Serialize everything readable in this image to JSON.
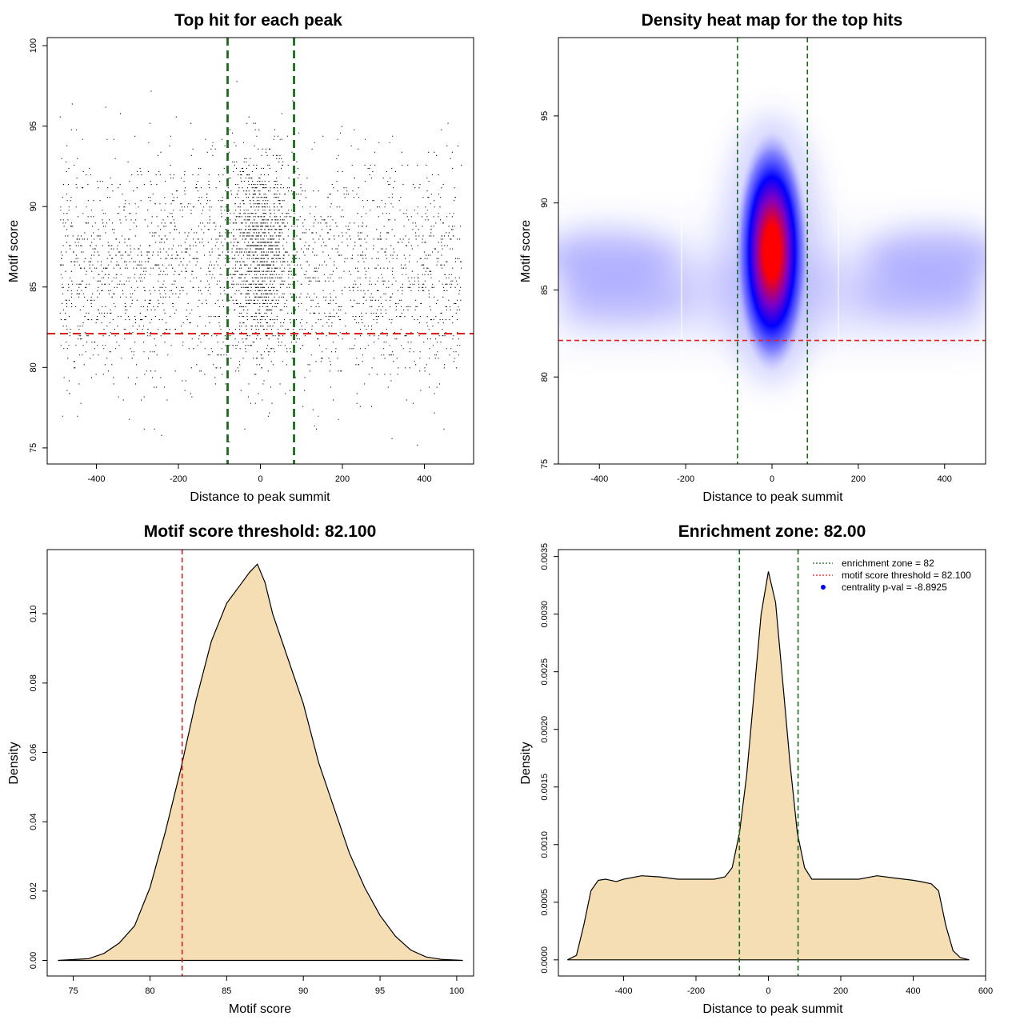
{
  "chart_data": [
    {
      "id": "scatter",
      "type": "scatter",
      "title": "Top hit for each peak",
      "xlabel": "Distance to peak summit",
      "ylabel": "Motif score",
      "xlim": [
        -520,
        520
      ],
      "ylim": [
        74,
        100.5
      ],
      "xticks": [
        -400,
        -200,
        0,
        200,
        400
      ],
      "yticks": [
        75,
        80,
        85,
        90,
        95,
        100
      ],
      "vlines": [
        -80,
        82
      ],
      "hline": 82.1,
      "point_color": "#000000",
      "vline_color": "#1a6b1a",
      "hline_color": "#e02020"
    },
    {
      "id": "heatmap",
      "type": "heatmap",
      "title": "Density heat map for the top hits",
      "xlabel": "Distance to peak summit",
      "ylabel": "Motif score",
      "xlim": [
        -495,
        495
      ],
      "ylim": [
        75,
        99.5
      ],
      "xticks": [
        -400,
        -200,
        0,
        200,
        400
      ],
      "yticks": [
        75,
        80,
        85,
        90,
        95
      ],
      "vlines": [
        -80,
        82
      ],
      "hline": 82.1,
      "colors": [
        "#ffffff",
        "#0000ff",
        "#ff0000"
      ],
      "peak": {
        "x": 0,
        "y": 87.2
      }
    },
    {
      "id": "score-density",
      "type": "area",
      "title": "Motif score threshold: 82.100",
      "xlabel": "Motif score",
      "ylabel": "Density",
      "xlim": [
        73.3,
        101.1
      ],
      "ylim": [
        -0.0045,
        0.1185
      ],
      "xticks": [
        75,
        80,
        85,
        90,
        95,
        100
      ],
      "yticks": [
        0.0,
        0.02,
        0.04,
        0.06,
        0.08,
        0.1
      ],
      "ytick_labels": [
        "0.00",
        "0.02",
        "0.04",
        "0.06",
        "0.08",
        "0.10"
      ],
      "vline": 82.1,
      "fill_color": "#f5deb3",
      "vline_color": "#e02020",
      "x": [
        74,
        76,
        77,
        78,
        79,
        80,
        81,
        82,
        83,
        84,
        85,
        86,
        86.5,
        87,
        87.5,
        88,
        89,
        90,
        91,
        92,
        93,
        94,
        95,
        96,
        97,
        98,
        99,
        100.4
      ],
      "y": [
        0.0,
        0.0005,
        0.002,
        0.005,
        0.01,
        0.021,
        0.037,
        0.055,
        0.075,
        0.092,
        0.103,
        0.109,
        0.112,
        0.1143,
        0.109,
        0.1,
        0.087,
        0.074,
        0.057,
        0.044,
        0.031,
        0.021,
        0.013,
        0.007,
        0.003,
        0.001,
        0.0003,
        0.0
      ]
    },
    {
      "id": "distance-density",
      "type": "area",
      "title": "Enrichment zone: 82.00",
      "xlabel": "Distance to peak summit",
      "ylabel": "Density",
      "xlim": [
        -580,
        600
      ],
      "ylim": [
        -0.00014,
        0.00356
      ],
      "xticks": [
        -400,
        -200,
        0,
        200,
        400,
        600
      ],
      "yticks": [
        0.0,
        0.0005,
        0.001,
        0.0015,
        0.002,
        0.0025,
        0.003,
        0.0035
      ],
      "ytick_labels": [
        "0.0000",
        "0.0005",
        "0.0010",
        "0.0015",
        "0.0020",
        "0.0025",
        "0.0030",
        "0.0035"
      ],
      "vlines": [
        -80,
        82
      ],
      "fill_color": "#f5deb3",
      "vline_color": "#1a6b1a",
      "x": [
        -555,
        -530,
        -510,
        -490,
        -470,
        -450,
        -420,
        -400,
        -350,
        -300,
        -250,
        -200,
        -150,
        -120,
        -100,
        -80,
        -60,
        -40,
        -20,
        0,
        20,
        40,
        60,
        80,
        100,
        120,
        150,
        200,
        250,
        300,
        350,
        400,
        420,
        450,
        470,
        490,
        510,
        530,
        555
      ],
      "y": [
        0.0,
        4e-05,
        0.0003,
        0.0006,
        0.00069,
        0.0007,
        0.00068,
        0.0007,
        0.00073,
        0.00072,
        0.0007,
        0.0007,
        0.0007,
        0.00072,
        0.0008,
        0.0011,
        0.0016,
        0.0023,
        0.003,
        0.00337,
        0.0031,
        0.0024,
        0.0017,
        0.0011,
        0.0008,
        0.0007,
        0.0007,
        0.0007,
        0.0007,
        0.00073,
        0.00071,
        0.00069,
        0.00068,
        0.00066,
        0.0006,
        0.0003,
        8e-05,
        2e-05,
        0.0
      ],
      "legend": [
        {
          "label": "enrichment zone = 82",
          "type": "line",
          "color": "#1a6b1a"
        },
        {
          "label": "motif score threshold = 82.100",
          "type": "line",
          "color": "#e02020"
        },
        {
          "label": "centrality p-val = -8.8925",
          "type": "point",
          "color": "#0000ff"
        }
      ]
    }
  ]
}
